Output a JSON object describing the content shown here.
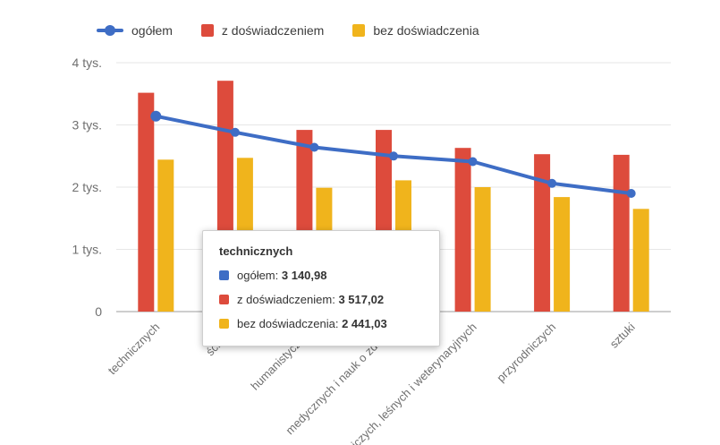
{
  "legend": {
    "items": [
      {
        "label": "ogółem",
        "color": "#3e6dc5",
        "marker": "line"
      },
      {
        "label": "z doświadczeniem",
        "color": "#dd4b3c",
        "marker": "square"
      },
      {
        "label": "bez doświadczenia",
        "color": "#f0b41c",
        "marker": "square"
      }
    ]
  },
  "chart_data": {
    "type": "combo",
    "categories": [
      "technicznych",
      "ścisłych",
      "humanistycznych",
      "medycznych i nauk o zdrowiu",
      "rolniczych, leśnych i weterynaryjnych",
      "przyrodniczych",
      "sztuki"
    ],
    "series": [
      {
        "name": "ogółem",
        "type": "line",
        "color": "#3e6dc5",
        "values": [
          3140.98,
          2880,
          2640,
          2500,
          2410,
          2060,
          1900
        ]
      },
      {
        "name": "z doświadczeniem",
        "type": "bar",
        "color": "#dd4b3c",
        "values": [
          3517.02,
          3710,
          2920,
          2920,
          2630,
          2530,
          2520
        ]
      },
      {
        "name": "bez doświadczenia",
        "type": "bar",
        "color": "#f0b41c",
        "values": [
          2441.03,
          2470,
          1990,
          2110,
          2000,
          1840,
          1650
        ]
      }
    ],
    "ylim": [
      0,
      4000
    ],
    "yticks": [
      {
        "value": 0,
        "label": "0"
      },
      {
        "value": 1000,
        "label": "1 tys."
      },
      {
        "value": 2000,
        "label": "2 tys."
      },
      {
        "value": 3000,
        "label": "3 tys."
      },
      {
        "value": 4000,
        "label": "4 tys."
      }
    ],
    "grid": true,
    "legend_position": "top"
  },
  "tooltip": {
    "title": "technicznych",
    "rows": [
      {
        "label": "ogółem:",
        "value": "3 140,98",
        "color": "#3e6dc5"
      },
      {
        "label": "z doświadczeniem:",
        "value": "3 517,02",
        "color": "#dd4b3c"
      },
      {
        "label": "bez doświadczenia:",
        "value": "2 441,03",
        "color": "#f0b41c"
      }
    ]
  }
}
